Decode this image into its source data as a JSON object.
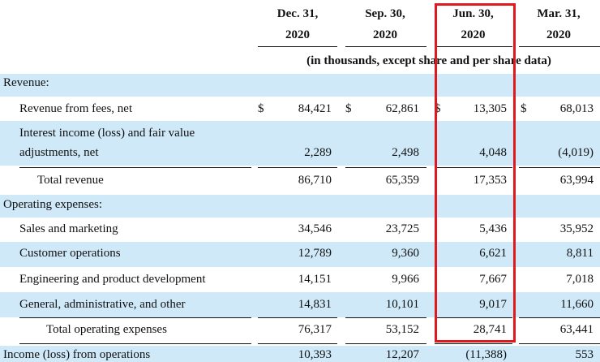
{
  "columns": [
    {
      "line1": "Dec. 31,",
      "line2": "2020"
    },
    {
      "line1": "Sep. 30,",
      "line2": "2020"
    },
    {
      "line1": "Jun. 30,",
      "line2": "2020"
    },
    {
      "line1": "Mar. 31,",
      "line2": "2020"
    }
  ],
  "unit_note": "(in thousands, except share and per share data)",
  "currency_symbol": "$",
  "rows": {
    "revenue_header": {
      "label": "Revenue:"
    },
    "revenue_fees": {
      "label": "Revenue from fees, net",
      "values": [
        "84,421",
        "62,861",
        "13,305",
        "68,013"
      ]
    },
    "interest_income": {
      "label_line1": "Interest income (loss) and fair value",
      "label_line2": "adjustments, net",
      "values": [
        "2,289",
        "2,498",
        "4,048",
        "(4,019)"
      ]
    },
    "total_revenue": {
      "label": "Total revenue",
      "values": [
        "86,710",
        "65,359",
        "17,353",
        "63,994"
      ]
    },
    "opex_header": {
      "label": "Operating expenses:"
    },
    "sales_marketing": {
      "label": "Sales and marketing",
      "values": [
        "34,546",
        "23,725",
        "5,436",
        "35,952"
      ]
    },
    "customer_ops": {
      "label": "Customer operations",
      "values": [
        "12,789",
        "9,360",
        "6,621",
        "8,811"
      ]
    },
    "engineering": {
      "label": "Engineering and product development",
      "values": [
        "14,151",
        "9,966",
        "7,667",
        "7,018"
      ]
    },
    "general_admin": {
      "label": "General, administrative, and other",
      "values": [
        "14,831",
        "10,101",
        "9,017",
        "11,660"
      ]
    },
    "total_opex": {
      "label": "Total operating expenses",
      "values": [
        "76,317",
        "53,152",
        "28,741",
        "63,441"
      ]
    },
    "income_ops": {
      "label": "Income (loss) from operations",
      "values": [
        "10,393",
        "12,207",
        "(11,388)",
        "553"
      ]
    }
  },
  "highlight_color": "#e0191f"
}
